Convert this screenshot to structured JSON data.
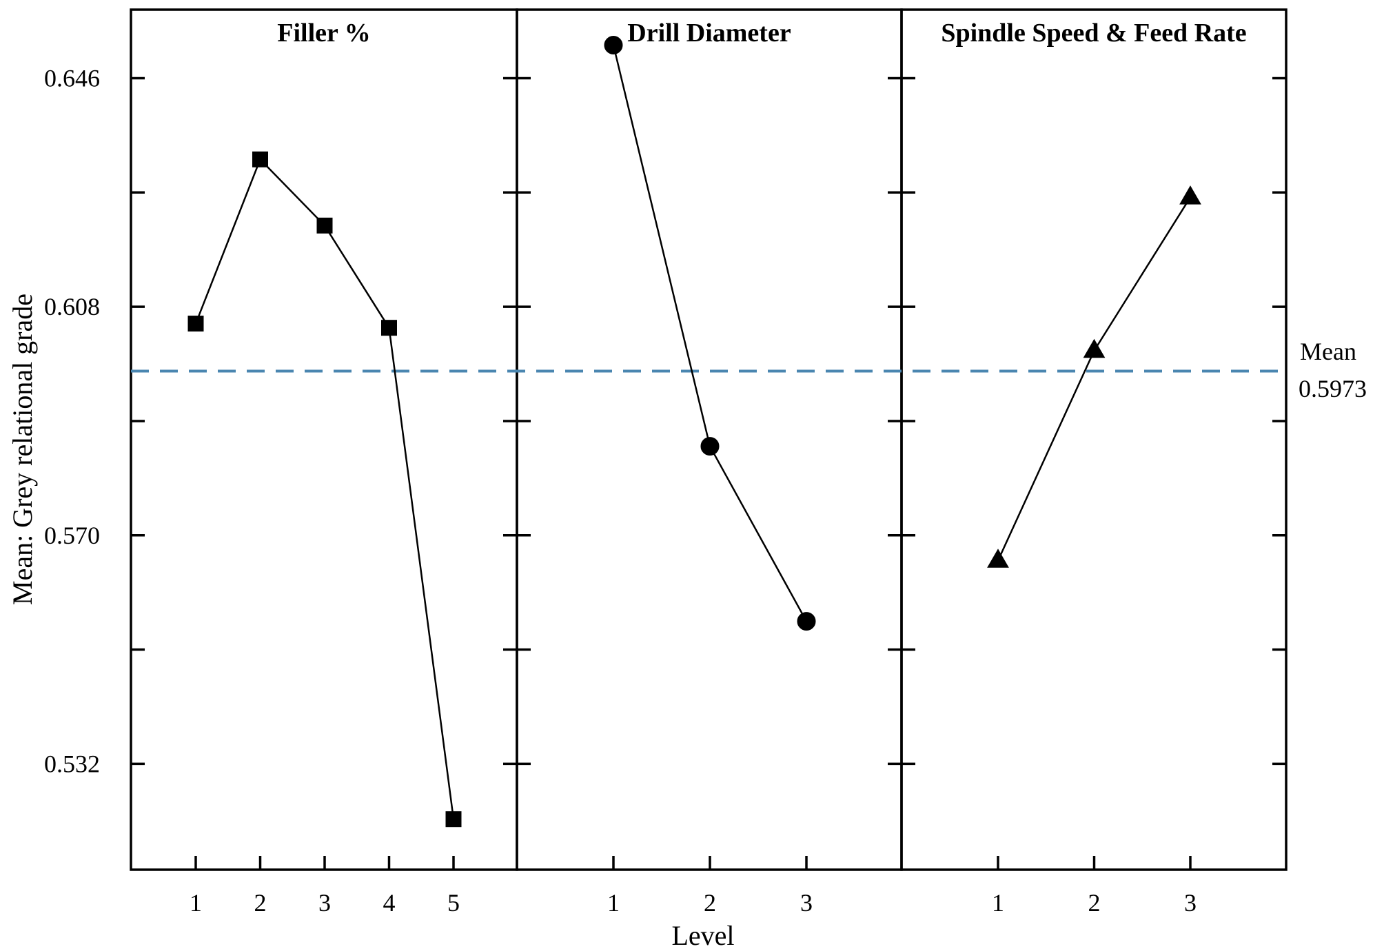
{
  "chart_data": {
    "type": "line",
    "title": "",
    "xlabel": "Level",
    "ylabel": "Mean: Grey relational grade",
    "ylim": [
      0.5144,
      0.6574
    ],
    "yticks": [
      0.532,
      0.57,
      0.608,
      0.646
    ],
    "ytick_labels": [
      "0.532",
      "0.570",
      "0.608",
      "0.646"
    ],
    "reference_line": {
      "value": 0.5973,
      "label_line1": "Mean",
      "label_line2": "0.5973",
      "color": "#4a86b0",
      "style": "dashed"
    },
    "panels": [
      {
        "title": "Filler %",
        "marker": "square",
        "categories": [
          "1",
          "2",
          "3",
          "4",
          "5"
        ],
        "values": [
          0.6052,
          0.6325,
          0.6215,
          0.6045,
          0.5228
        ]
      },
      {
        "title": "Drill Diameter",
        "marker": "circle",
        "categories": [
          "1",
          "2",
          "3"
        ],
        "values": [
          0.6515,
          0.5848,
          0.5557
        ]
      },
      {
        "title": "Spindle Speed & Feed Rate",
        "marker": "triangle",
        "categories": [
          "1",
          "2",
          "3"
        ],
        "values": [
          0.5658,
          0.6007,
          0.6262
        ]
      }
    ]
  }
}
